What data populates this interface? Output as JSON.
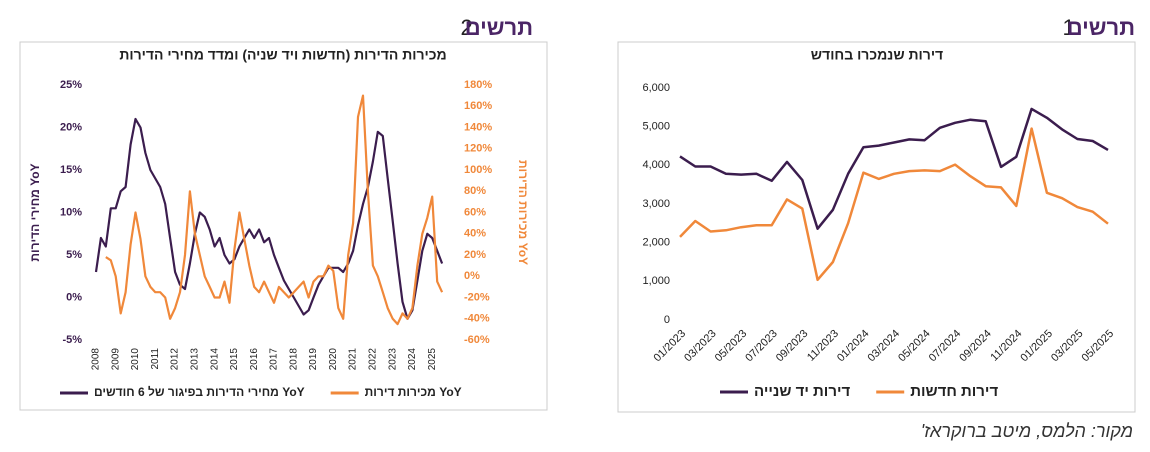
{
  "headers": [
    {
      "label": "תרשים",
      "number": 1
    },
    {
      "label": "תרשים",
      "number": 2
    }
  ],
  "source": "מקור: הלמס, מיטב ברוקראז'",
  "chart_data": [
    {
      "type": "line",
      "title": "דירות שנמכרו בחודש",
      "categories": [
        "01/2023",
        null,
        "03/2023",
        null,
        "05/2023",
        null,
        "07/2023",
        null,
        "09/2023",
        null,
        "11/2023",
        null,
        "01/2024",
        null,
        "03/2024",
        null,
        "05/2024",
        null,
        "07/2024",
        null,
        "09/2024",
        null,
        "11/2024",
        null,
        "01/2025",
        null,
        "03/2025",
        null,
        "05/2025"
      ],
      "series": [
        {
          "name": "דירות יד שנייה",
          "color": "#3b1d4e",
          "values": [
            4230,
            3970,
            3970,
            3780,
            3760,
            3780,
            3600,
            4090,
            3620,
            2360,
            2850,
            3780,
            4470,
            4510,
            4590,
            4670,
            4650,
            4970,
            5100,
            5180,
            5140,
            3960,
            4220,
            5460,
            5230,
            4930,
            4680,
            4630,
            4400
          ]
        },
        {
          "name": "דירות חדשות",
          "color": "#f0883a",
          "values": [
            2150,
            2560,
            2290,
            2320,
            2400,
            2450,
            2450,
            3120,
            2880,
            1040,
            1500,
            2500,
            3810,
            3650,
            3780,
            3850,
            3870,
            3850,
            4020,
            3720,
            3460,
            3430,
            2950,
            4950,
            3290,
            3150,
            2920,
            2800,
            2490
          ]
        }
      ],
      "ylim": [
        0,
        6000
      ],
      "yticks": [
        0,
        {
          "value": 1000,
          "label": "1,000"
        },
        {
          "value": 2000,
          "label": "2,000"
        },
        {
          "value": 3000,
          "label": "3,000"
        },
        {
          "value": 4000,
          "label": "4,000"
        },
        {
          "value": 5000,
          "label": "5,000"
        },
        {
          "value": 6000,
          "label": "6,000"
        }
      ],
      "grid": false
    },
    {
      "type": "line",
      "title": "מכירות הדירות (חדשות ויד שניה) ומדד מחירי הדירות",
      "ylabel": "מחירי הדירות YoY",
      "y2label": "מכירות הדירות YoY",
      "series": [
        {
          "name": "מחירי הדירות בפיגור של 6 חודשים YoY",
          "color": "#3b1d4e",
          "x": [
            2008,
            2008.25,
            2008.5,
            2008.75,
            2009,
            2009.25,
            2009.5,
            2009.75,
            2010,
            2010.25,
            2010.5,
            2010.75,
            2011,
            2011.25,
            2011.5,
            2011.75,
            2012,
            2012.25,
            2012.5,
            2012.75,
            2013,
            2013.25,
            2013.5,
            2013.75,
            2014,
            2014.25,
            2014.5,
            2014.75,
            2015,
            2015.25,
            2015.5,
            2015.75,
            2016,
            2016.25,
            2016.5,
            2016.75,
            2017,
            2017.25,
            2017.5,
            2017.75,
            2018,
            2018.25,
            2018.5,
            2018.75,
            2019,
            2019.25,
            2019.5,
            2019.75,
            2020,
            2020.25,
            2020.5,
            2020.75,
            2021,
            2021.25,
            2021.5,
            2021.75,
            2022,
            2022.25,
            2022.5,
            2022.75,
            2023,
            2023.25,
            2023.5,
            2023.75,
            2024,
            2024.25,
            2024.5,
            2024.75,
            2025,
            2025.25,
            2025.5
          ],
          "values": [
            3,
            7,
            6,
            10.5,
            10.5,
            12.5,
            13,
            18,
            21,
            20,
            17,
            15,
            14,
            13,
            11,
            7,
            3,
            1.5,
            1,
            4,
            7.5,
            10,
            9.5,
            8,
            6,
            7,
            5,
            4,
            4.5,
            6,
            7,
            8,
            7,
            8,
            6.5,
            7,
            5,
            3.5,
            2,
            1,
            0,
            -1,
            -2,
            -1.5,
            0,
            1.5,
            2.5,
            3.5,
            3.5,
            3.5,
            3,
            4,
            5.5,
            8.5,
            11,
            13,
            16,
            19.5,
            19,
            14,
            9,
            4,
            -0.5,
            -2.5,
            -1.5,
            2,
            5.5,
            7.5,
            7,
            5.5,
            4
          ]
        },
        {
          "name": "מכירות דירות YoY",
          "color": "#f0883a",
          "axis": "y2",
          "x": [
            2008.5,
            2008.75,
            2009,
            2009.25,
            2009.5,
            2009.75,
            2010,
            2010.25,
            2010.5,
            2010.75,
            2011,
            2011.25,
            2011.5,
            2011.75,
            2012,
            2012.25,
            2012.5,
            2012.75,
            2013,
            2013.25,
            2013.5,
            2013.75,
            2014,
            2014.25,
            2014.5,
            2014.75,
            2015,
            2015.25,
            2015.5,
            2015.75,
            2016,
            2016.25,
            2016.5,
            2016.75,
            2017,
            2017.25,
            2017.5,
            2017.75,
            2018,
            2018.25,
            2018.5,
            2018.75,
            2019,
            2019.25,
            2019.5,
            2019.75,
            2020,
            2020.25,
            2020.5,
            2020.75,
            2021,
            2021.25,
            2021.5,
            2021.75,
            2022,
            2022.25,
            2022.5,
            2022.75,
            2023,
            2023.25,
            2023.5,
            2023.75,
            2024,
            2024.25,
            2024.5,
            2024.75,
            2025,
            2025.25,
            2025.5
          ],
          "values": [
            18,
            15,
            0,
            -35,
            -15,
            30,
            60,
            35,
            0,
            -10,
            -15,
            -15,
            -20,
            -40,
            -30,
            -15,
            20,
            80,
            40,
            20,
            0,
            -10,
            -20,
            -20,
            -5,
            -25,
            25,
            60,
            35,
            10,
            -10,
            -15,
            -5,
            -15,
            -25,
            -10,
            -15,
            -20,
            -15,
            -10,
            -5,
            -20,
            -5,
            0,
            0,
            10,
            5,
            -30,
            -40,
            20,
            50,
            150,
            170,
            80,
            10,
            0,
            -15,
            -30,
            -40,
            -45,
            -35,
            -40,
            -30,
            10,
            40,
            55,
            75,
            -5,
            -15
          ]
        }
      ],
      "xlim": [
        2007.8,
        2026
      ],
      "xticks": [
        2008,
        2009,
        2010,
        2011,
        2012,
        2013,
        2014,
        2015,
        2016,
        2017,
        2018,
        2019,
        2020,
        2021,
        2022,
        2023,
        2024,
        2025
      ],
      "ylim": [
        -5,
        25
      ],
      "yticks": [
        {
          "value": -5,
          "label": "-5%"
        },
        {
          "value": 0,
          "label": "0%"
        },
        {
          "value": 5,
          "label": "5%"
        },
        {
          "value": 10,
          "label": "10%"
        },
        {
          "value": 15,
          "label": "15%"
        },
        {
          "value": 20,
          "label": "20%"
        },
        {
          "value": 25,
          "label": "25%"
        }
      ],
      "y2lim": [
        -60,
        180
      ],
      "y2ticks": [
        {
          "value": -60,
          "label": "-60%"
        },
        {
          "value": -40,
          "label": "-40%"
        },
        {
          "value": -20,
          "label": "-20%"
        },
        {
          "value": 0,
          "label": "0%"
        },
        {
          "value": 20,
          "label": "20%"
        },
        {
          "value": 40,
          "label": "40%"
        },
        {
          "value": 60,
          "label": "60%"
        },
        {
          "value": 80,
          "label": "80%"
        },
        {
          "value": 100,
          "label": "100%"
        },
        {
          "value": 120,
          "label": "120%"
        },
        {
          "value": 140,
          "label": "140%"
        },
        {
          "value": 160,
          "label": "160%"
        },
        {
          "value": 180,
          "label": "180%"
        }
      ],
      "grid": false
    }
  ]
}
